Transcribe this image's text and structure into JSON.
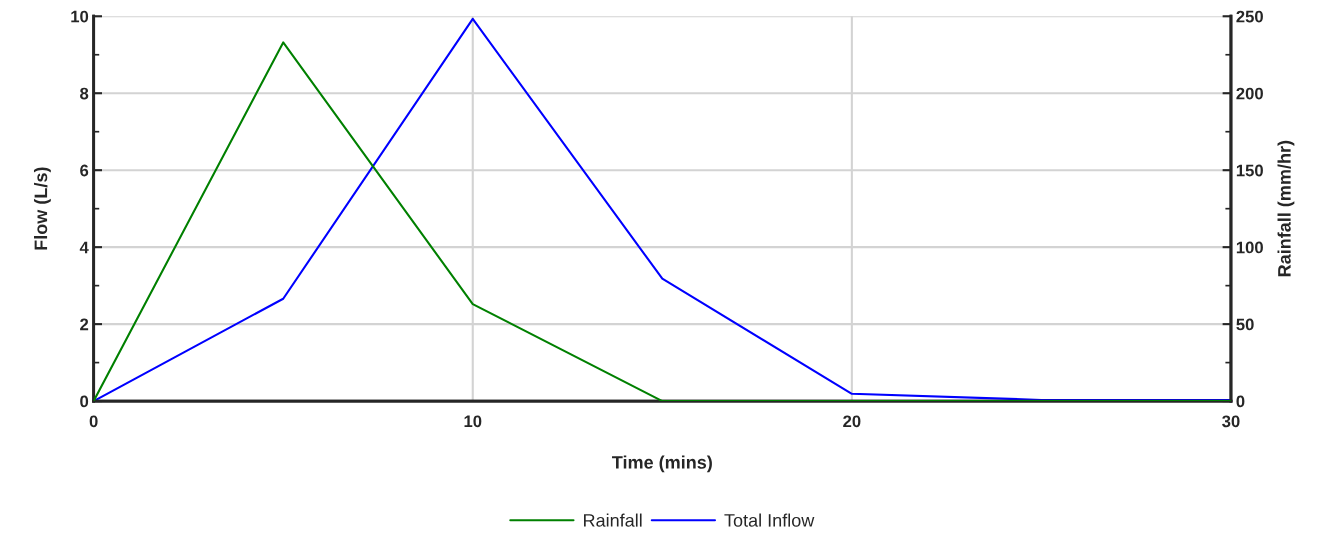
{
  "chart_data": {
    "type": "line",
    "xlabel": "Time (mins)",
    "ylabel": "Flow (L/s)",
    "y2label": "Rainfall (mm/hr)",
    "x": [
      0,
      5,
      10,
      15,
      20,
      25,
      30
    ],
    "series": [
      {
        "name": "Rainfall",
        "color": "#008000",
        "axis": "y2",
        "values": [
          0,
          233,
          63,
          0,
          0,
          0,
          0
        ]
      },
      {
        "name": "Total Inflow",
        "color": "#0000ff",
        "values": [
          0,
          2.66,
          9.93,
          3.18,
          0.19,
          0.03,
          0.03
        ]
      }
    ],
    "xlim": [
      0,
      30
    ],
    "xticks": [
      0,
      10,
      20,
      30
    ],
    "ylim": [
      0,
      10
    ],
    "yticks": [
      0,
      2,
      4,
      6,
      8,
      10
    ],
    "y2lim": [
      0,
      250
    ],
    "y2ticks": [
      0,
      50,
      100,
      150,
      200,
      250
    ],
    "grid": true,
    "legend": "bottom",
    "marker": "none",
    "line_style": "solid"
  }
}
